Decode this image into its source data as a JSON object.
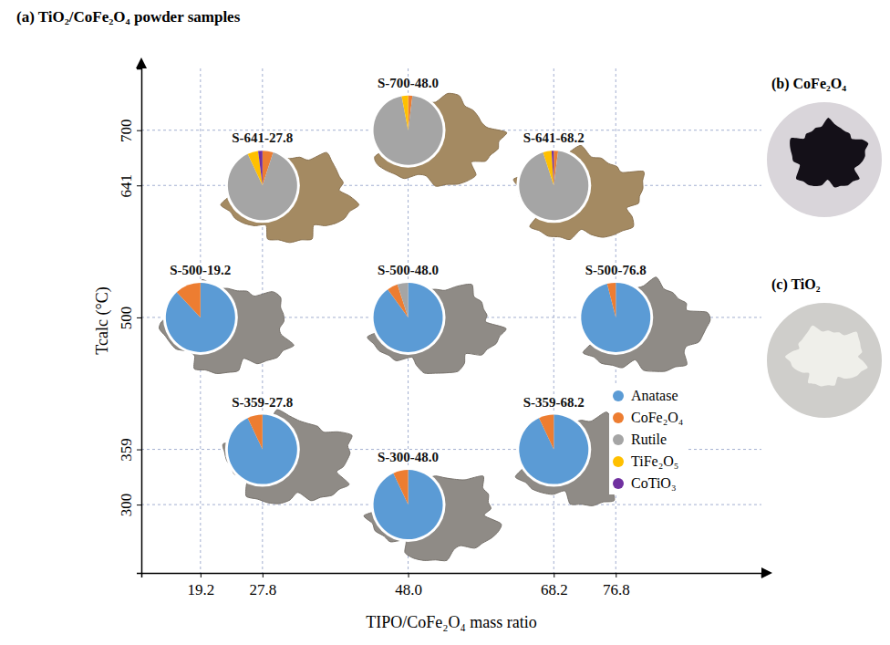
{
  "chart_data": {
    "type": "pie_scatter",
    "title": "(a)  TiO₂/CoFe₂O₄ powder samples",
    "x_label": "TIPO/CoFe₂O₄ mass ratio",
    "y_label": "Tcalc (°C)",
    "xlim": [
      11,
      97
    ],
    "ylim": [
      227,
      766
    ],
    "xticks": [
      19.2,
      27.8,
      {
        "value": 48,
        "label": "48.0"
      },
      68.2,
      76.8
    ],
    "yticks": [
      300,
      359,
      500,
      641,
      700
    ],
    "grid": true,
    "legend": "bottom-right",
    "series": [
      {
        "name": "Anatase",
        "color": "#5b9bd5"
      },
      {
        "name": "CoFe₂O₄",
        "color": "#ed7d31"
      },
      {
        "name": "Rutile",
        "color": "#a5a5a5"
      },
      {
        "name": "TiFe₂O₅",
        "color": "#ffc000"
      },
      {
        "name": "CoTiO₃",
        "color": "#7030a0"
      }
    ],
    "samples": [
      {
        "label": "S-641-27.8",
        "x": 27.8,
        "y": 641,
        "values": [
          0,
          5,
          88,
          5,
          2
        ]
      },
      {
        "label": "S-700-48.0",
        "x": 48,
        "y": 700,
        "values": [
          0,
          2,
          95,
          3,
          0
        ]
      },
      {
        "label": "S-641-68.2",
        "x": 68.2,
        "y": 641,
        "values": [
          0,
          2,
          93,
          4,
          1
        ]
      },
      {
        "label": "S-500-19.2",
        "x": 19.2,
        "y": 500,
        "values": [
          88,
          12,
          0,
          0,
          0
        ]
      },
      {
        "label": "S-500-48.0",
        "x": 48,
        "y": 500,
        "values": [
          90,
          5,
          5,
          0,
          0
        ]
      },
      {
        "label": "S-500-76.8",
        "x": 76.8,
        "y": 500,
        "values": [
          96,
          4,
          0,
          0,
          0
        ]
      },
      {
        "label": "S-359-27.8",
        "x": 27.8,
        "y": 359,
        "values": [
          93,
          7,
          0,
          0,
          0
        ]
      },
      {
        "label": "S-300-48.0",
        "x": 48,
        "y": 300,
        "values": [
          93,
          7,
          0,
          0,
          0
        ]
      },
      {
        "label": "S-359-68.2",
        "x": 68.2,
        "y": 359,
        "values": [
          93,
          7,
          0,
          0,
          0
        ]
      }
    ]
  },
  "photos": [
    {
      "label": "(b)  CoFe₂O₄"
    },
    {
      "label": "(c)  TiO₂"
    }
  ]
}
